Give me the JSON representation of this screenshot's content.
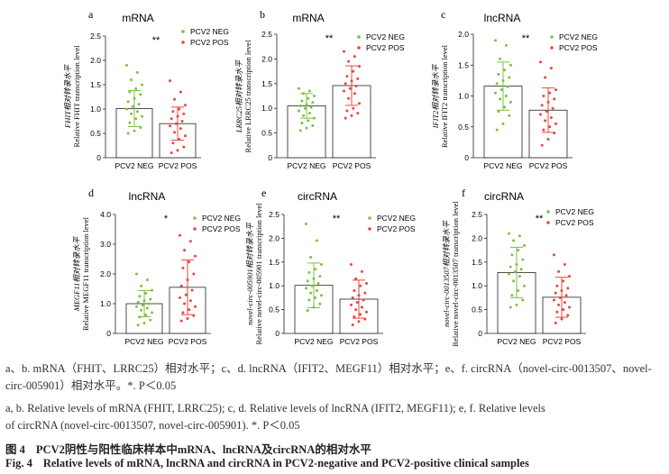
{
  "figure": {
    "colors": {
      "neg": "#7cc242",
      "pos": "#e8473f",
      "axis": "#222222",
      "bar": "#ffffff"
    },
    "legend": [
      "PCV2 NEG",
      "PCV2 POS"
    ],
    "categories": [
      "PCV2 NEG",
      "PCV2 POS"
    ]
  },
  "chart_data": [
    {
      "type": "bar",
      "panel": "a",
      "title": "mRNA",
      "ylabel_cn": "FHIT相对转录水平",
      "ylabel_en": "Relative FHIT transcription level",
      "ylim": [
        0,
        2.5
      ],
      "yticks": [
        0,
        0.5,
        1.0,
        1.5,
        2.0,
        2.5
      ],
      "yticklabels": [
        "0",
        "0.5",
        "1.0",
        "1.5",
        "2.0",
        "2.5"
      ],
      "significance": "**",
      "categories": [
        "PCV2 NEG",
        "PCV2 POS"
      ],
      "values": [
        1.01,
        0.7
      ],
      "errors": [
        0.37,
        0.34
      ],
      "points": [
        [
          1.9,
          1.75,
          1.6,
          1.5,
          1.42,
          1.35,
          1.3,
          1.22,
          1.15,
          1.1,
          1.05,
          1.0,
          0.95,
          0.9,
          0.85,
          0.8,
          0.72,
          0.62,
          0.55,
          0.5
        ],
        [
          1.58,
          1.35,
          1.2,
          1.08,
          1.0,
          0.95,
          0.9,
          0.85,
          0.8,
          0.75,
          0.7,
          0.65,
          0.6,
          0.52,
          0.45,
          0.38,
          0.3,
          0.22,
          0.15,
          0.1
        ]
      ]
    },
    {
      "type": "bar",
      "panel": "b",
      "title": "mRNA",
      "ylabel_cn": "LRRC25相对转录水平",
      "ylabel_en": "Relative LRRC25 transcription level",
      "ylim": [
        0,
        2.5
      ],
      "yticks": [
        0,
        0.5,
        1.0,
        1.5,
        2.0,
        2.5
      ],
      "yticklabels": [
        "0",
        "0.5",
        "1.0",
        "1.5",
        "2.0",
        "2.5"
      ],
      "significance": "**",
      "categories": [
        "PCV2 NEG",
        "PCV2 POS"
      ],
      "values": [
        1.05,
        1.46
      ],
      "errors": [
        0.25,
        0.4
      ],
      "points": [
        [
          1.4,
          1.35,
          1.3,
          1.25,
          1.2,
          1.15,
          1.12,
          1.08,
          1.05,
          1.02,
          1.0,
          0.95,
          0.9,
          0.85,
          0.8,
          0.75,
          0.7,
          0.65,
          0.6,
          0.55
        ],
        [
          2.15,
          2.05,
          1.95,
          1.85,
          1.75,
          1.65,
          1.6,
          1.55,
          1.5,
          1.45,
          1.4,
          1.35,
          1.3,
          1.2,
          1.1,
          1.0,
          0.95,
          0.9,
          0.85,
          0.8
        ]
      ]
    },
    {
      "type": "bar",
      "panel": "c",
      "title": "lncRNA",
      "ylabel_cn": "IFIT2相对转录水平",
      "ylabel_en": "Relative IFIT2 transcription level",
      "ylim": [
        0,
        2.0
      ],
      "yticks": [
        0,
        0.5,
        1.0,
        1.5,
        2.0
      ],
      "yticklabels": [
        "0",
        "0.5",
        "1.0",
        "1.5",
        "2.0"
      ],
      "significance": "**",
      "categories": [
        "PCV2 NEG",
        "PCV2 POS"
      ],
      "values": [
        1.16,
        0.77
      ],
      "errors": [
        0.39,
        0.36
      ],
      "points": [
        [
          1.9,
          1.82,
          1.6,
          1.5,
          1.42,
          1.35,
          1.3,
          1.25,
          1.2,
          1.15,
          1.1,
          1.05,
          1.0,
          0.95,
          0.9,
          0.82,
          0.75,
          0.68,
          0.55,
          0.45
        ],
        [
          1.55,
          1.45,
          1.3,
          1.1,
          1.05,
          1.0,
          0.95,
          0.9,
          0.85,
          0.8,
          0.75,
          0.7,
          0.65,
          0.6,
          0.55,
          0.5,
          0.45,
          0.4,
          0.3,
          0.2
        ]
      ]
    },
    {
      "type": "bar",
      "panel": "d",
      "title": "lncRNA",
      "ylabel_cn": "MEGF11相对转录水平",
      "ylabel_en": "Relative MEGF11 transcription level",
      "ylim": [
        0,
        4.0
      ],
      "yticks": [
        0,
        1.0,
        2.0,
        3.0,
        4.0
      ],
      "yticklabels": [
        "0",
        "1.0",
        "2.0",
        "3.0",
        "4.0"
      ],
      "significance": "*",
      "categories": [
        "PCV2 NEG",
        "PCV2 POS"
      ],
      "values": [
        1.0,
        1.55
      ],
      "errors": [
        0.44,
        0.92
      ],
      "points": [
        [
          2.0,
          1.8,
          1.6,
          1.45,
          1.35,
          1.25,
          1.15,
          1.1,
          1.05,
          1.0,
          0.95,
          0.9,
          0.85,
          0.78,
          0.7,
          0.62,
          0.55,
          0.45,
          0.35,
          0.28
        ],
        [
          3.3,
          3.1,
          2.8,
          2.6,
          2.4,
          2.2,
          2.0,
          1.8,
          1.6,
          1.45,
          1.3,
          1.2,
          1.1,
          1.0,
          0.9,
          0.8,
          0.7,
          0.6,
          0.5,
          0.42
        ]
      ]
    },
    {
      "type": "bar",
      "panel": "e",
      "title": "circRNA",
      "ylabel_cn": "novel-circ-005901相对转录水平",
      "ylabel_en": "Relative novel-circ-005901 transcription level",
      "ylim": [
        0,
        2.5
      ],
      "yticks": [
        0,
        0.5,
        1.0,
        1.5,
        2.0,
        2.5
      ],
      "yticklabels": [
        "0",
        "0.5",
        "1.0",
        "1.5",
        "2.0",
        "2.5"
      ],
      "significance": "**",
      "categories": [
        "PCV2 NEG",
        "PCV2 POS"
      ],
      "values": [
        1.01,
        0.72
      ],
      "errors": [
        0.47,
        0.4
      ],
      "points": [
        [
          2.3,
          1.95,
          1.6,
          1.45,
          1.35,
          1.28,
          1.2,
          1.15,
          1.1,
          1.05,
          1.0,
          0.95,
          0.9,
          0.85,
          0.8,
          0.75,
          0.7,
          0.62,
          0.55,
          0.48
        ],
        [
          1.45,
          1.3,
          1.15,
          1.05,
          1.0,
          0.9,
          0.85,
          0.8,
          0.75,
          0.7,
          0.65,
          0.6,
          0.55,
          0.5,
          0.45,
          0.4,
          0.35,
          0.3,
          0.25,
          0.18
        ]
      ]
    },
    {
      "type": "bar",
      "panel": "f",
      "title": "circRNA",
      "ylabel_cn": "novel-circ-0013507相对转录水平",
      "ylabel_en": "Relative novel-circ-0013507 transcription level",
      "ylim": [
        0,
        2.5
      ],
      "yticks": [
        0,
        0.5,
        1.0,
        1.5,
        2.0,
        2.5
      ],
      "yticklabels": [
        "0",
        "0.5",
        "1.0",
        "1.5",
        "2.0",
        "2.5"
      ],
      "significance": "**",
      "categories": [
        "PCV2 NEG",
        "PCV2 POS"
      ],
      "values": [
        1.28,
        0.76
      ],
      "errors": [
        0.53,
        0.42
      ],
      "points": [
        [
          2.1,
          2.05,
          1.95,
          1.85,
          1.75,
          1.65,
          1.55,
          1.45,
          1.4,
          1.35,
          1.3,
          1.25,
          1.2,
          1.1,
          1.0,
          0.9,
          0.8,
          0.7,
          0.6,
          0.55
        ],
        [
          1.65,
          1.45,
          1.3,
          1.2,
          1.1,
          1.0,
          0.95,
          0.9,
          0.85,
          0.8,
          0.75,
          0.7,
          0.65,
          0.6,
          0.55,
          0.5,
          0.45,
          0.38,
          0.3,
          0.22
        ]
      ]
    }
  ],
  "caption": {
    "cn_line1": "a、b. mRNA（FHIT、LRRC25）相对水平；c、d. lncRNA（IFIT2、MEGF11）相对水平；e、f. circRNA（novel-circ-0013507、novel-",
    "cn_line2": "circ-005901）相对水平。*. P＜0.05",
    "en_line1": "a, b. Relative levels of mRNA (FHIT, LRRC25); c, d. Relative levels of lncRNA (IFIT2, MEGF11); e, f. Relative levels",
    "en_line2": "of circRNA (novel-circ-0013507, novel-circ-005901). *. P＜0.05",
    "title_cn_label": "图 4",
    "title_cn": "PCV2阴性与阳性临床样本中mRNA、lncRNA及circRNA的相对水平",
    "title_en_label": "Fig. 4",
    "title_en": "Relative levels of mRNA, lncRNA and circRNA in PCV2-negative and PCV2-positive clinical samples"
  }
}
